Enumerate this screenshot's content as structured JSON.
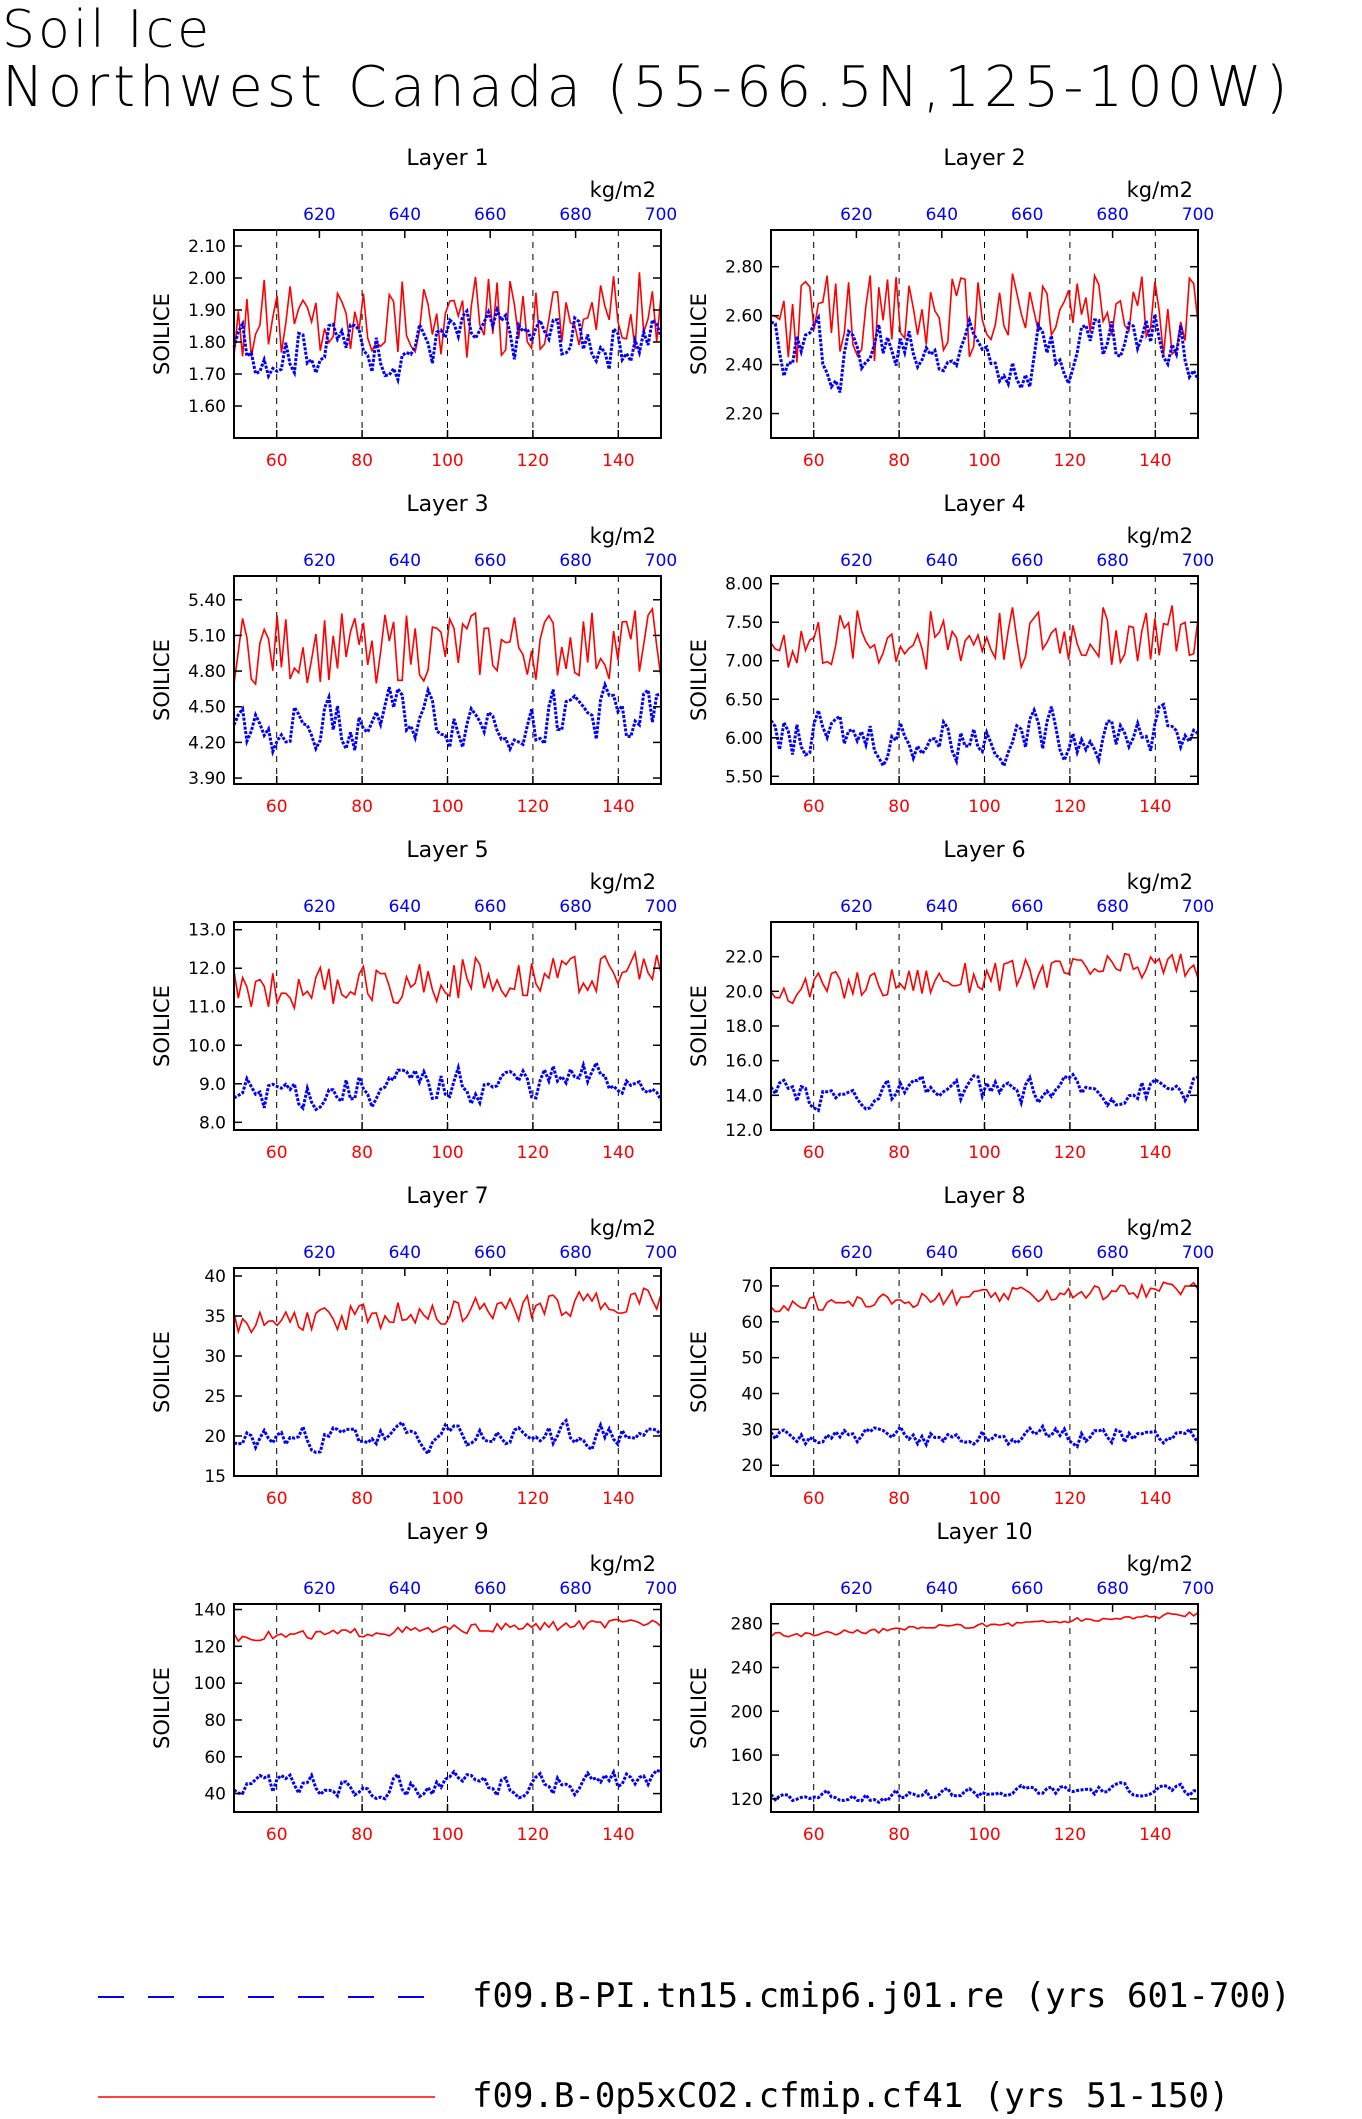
{
  "title": {
    "line1": "Soil Ice",
    "line2": "Northwest Canada (55-66.5N,125-100W)"
  },
  "legend": [
    {
      "label": "f09.B-PI.tn15.cmip6.j01.re (yrs 601-700)",
      "color": "#0000ff",
      "style": "dashed"
    },
    {
      "label": "f09.B-0p5xCO2.cfmip.cf41 (yrs 51-150)",
      "color": "#ff0000",
      "style": "solid"
    }
  ],
  "colors": {
    "series_red": "#ff0000",
    "series_blue": "#0000ff",
    "axis": "#000000"
  },
  "chart_data": [
    {
      "type": "line",
      "title": "Layer 1",
      "ylabel": "SOILICE",
      "units": "kg/m2",
      "bottom_axis": {
        "range": [
          50,
          150
        ],
        "ticks": [
          60,
          80,
          100,
          120,
          140
        ],
        "color": "#ff0000"
      },
      "top_axis": {
        "range": [
          600,
          700
        ],
        "ticks": [
          620,
          640,
          660,
          680,
          700
        ],
        "color": "#0000ff"
      },
      "ylim": [
        1.5,
        2.15
      ],
      "yticks": [
        1.6,
        1.7,
        1.8,
        1.9,
        2.0,
        2.1
      ],
      "ytick_labels": [
        "1.60",
        "1.70",
        "1.80",
        "1.90",
        "2.00",
        "2.10"
      ],
      "vlines": [
        60,
        80,
        100,
        120,
        140
      ],
      "series": [
        {
          "axis": "bottom",
          "color": "#ff0000",
          "style": "solid",
          "mean": 1.88,
          "amp": 0.13,
          "trend": 0.03
        },
        {
          "axis": "top",
          "color": "#0000ff",
          "style": "dashed",
          "mean": 1.8,
          "amp": 0.1,
          "trend": 0.04
        }
      ]
    },
    {
      "type": "line",
      "title": "Layer 2",
      "ylabel": "SOILICE",
      "units": "kg/m2",
      "bottom_axis": {
        "range": [
          50,
          150
        ],
        "ticks": [
          60,
          80,
          100,
          120,
          140
        ],
        "color": "#ff0000"
      },
      "top_axis": {
        "range": [
          600,
          700
        ],
        "ticks": [
          620,
          640,
          660,
          680,
          700
        ],
        "color": "#0000ff"
      },
      "ylim": [
        2.1,
        2.95
      ],
      "yticks": [
        2.2,
        2.4,
        2.6,
        2.8
      ],
      "ytick_labels": [
        "2.20",
        "2.40",
        "2.60",
        "2.80"
      ],
      "vlines": [
        60,
        80,
        100,
        120,
        140
      ],
      "series": [
        {
          "axis": "bottom",
          "color": "#ff0000",
          "style": "solid",
          "mean": 2.6,
          "amp": 0.18,
          "trend": 0.04
        },
        {
          "axis": "top",
          "color": "#0000ff",
          "style": "dashed",
          "mean": 2.48,
          "amp": 0.15,
          "trend": 0.05
        }
      ]
    },
    {
      "type": "line",
      "title": "Layer 3",
      "ylabel": "SOILICE",
      "units": "kg/m2",
      "bottom_axis": {
        "range": [
          50,
          150
        ],
        "ticks": [
          60,
          80,
          100,
          120,
          140
        ],
        "color": "#ff0000"
      },
      "top_axis": {
        "range": [
          600,
          700
        ],
        "ticks": [
          620,
          640,
          660,
          680,
          700
        ],
        "color": "#0000ff"
      },
      "ylim": [
        3.85,
        5.6
      ],
      "yticks": [
        3.9,
        4.2,
        4.5,
        4.8,
        5.1,
        5.4
      ],
      "ytick_labels": [
        "3.90",
        "4.20",
        "4.50",
        "4.80",
        "5.10",
        "5.40"
      ],
      "vlines": [
        60,
        80,
        100,
        120,
        140
      ],
      "series": [
        {
          "axis": "bottom",
          "color": "#ff0000",
          "style": "solid",
          "mean": 5.0,
          "amp": 0.3,
          "trend": 0.05
        },
        {
          "axis": "top",
          "color": "#0000ff",
          "style": "dashed",
          "mean": 4.4,
          "amp": 0.28,
          "trend": 0.08
        }
      ]
    },
    {
      "type": "line",
      "title": "Layer 4",
      "ylabel": "SOILICE",
      "units": "kg/m2",
      "bottom_axis": {
        "range": [
          50,
          150
        ],
        "ticks": [
          60,
          80,
          100,
          120,
          140
        ],
        "color": "#ff0000"
      },
      "top_axis": {
        "range": [
          600,
          700
        ],
        "ticks": [
          620,
          640,
          660,
          680,
          700
        ],
        "color": "#0000ff"
      },
      "ylim": [
        5.4,
        8.1
      ],
      "yticks": [
        5.5,
        6.0,
        6.5,
        7.0,
        7.5,
        8.0
      ],
      "ytick_labels": [
        "5.50",
        "6.00",
        "6.50",
        "7.00",
        "7.50",
        "8.00"
      ],
      "vlines": [
        60,
        80,
        100,
        120,
        140
      ],
      "series": [
        {
          "axis": "bottom",
          "color": "#ff0000",
          "style": "solid",
          "mean": 7.3,
          "amp": 0.4,
          "trend": 0.15
        },
        {
          "axis": "top",
          "color": "#0000ff",
          "style": "dashed",
          "mean": 6.05,
          "amp": 0.35,
          "trend": 0.15
        }
      ]
    },
    {
      "type": "line",
      "title": "Layer 5",
      "ylabel": "SOILICE",
      "units": "kg/m2",
      "bottom_axis": {
        "range": [
          50,
          150
        ],
        "ticks": [
          60,
          80,
          100,
          120,
          140
        ],
        "color": "#ff0000"
      },
      "top_axis": {
        "range": [
          600,
          700
        ],
        "ticks": [
          620,
          640,
          660,
          680,
          700
        ],
        "color": "#0000ff"
      },
      "ylim": [
        7.8,
        13.2
      ],
      "yticks": [
        8.0,
        9.0,
        10.0,
        11.0,
        12.0,
        13.0
      ],
      "ytick_labels": [
        "8.0",
        "9.0",
        "10.0",
        "11.0",
        "12.0",
        "13.0"
      ],
      "vlines": [
        60,
        80,
        100,
        120,
        140
      ],
      "series": [
        {
          "axis": "bottom",
          "color": "#ff0000",
          "style": "solid",
          "mean": 11.7,
          "amp": 0.55,
          "trend": 0.6
        },
        {
          "axis": "top",
          "color": "#0000ff",
          "style": "dashed",
          "mean": 8.9,
          "amp": 0.55,
          "trend": 0.4
        }
      ]
    },
    {
      "type": "line",
      "title": "Layer 6",
      "ylabel": "SOILICE",
      "units": "kg/m2",
      "bottom_axis": {
        "range": [
          50,
          150
        ],
        "ticks": [
          60,
          80,
          100,
          120,
          140
        ],
        "color": "#ff0000"
      },
      "top_axis": {
        "range": [
          600,
          700
        ],
        "ticks": [
          620,
          640,
          660,
          680,
          700
        ],
        "color": "#0000ff"
      },
      "ylim": [
        12.0,
        24.0
      ],
      "yticks": [
        12.0,
        14.0,
        16.0,
        18.0,
        20.0,
        22.0
      ],
      "ytick_labels": [
        "12.0",
        "14.0",
        "16.0",
        "18.0",
        "20.0",
        "22.0"
      ],
      "vlines": [
        60,
        80,
        100,
        120,
        140
      ],
      "series": [
        {
          "axis": "bottom",
          "color": "#ff0000",
          "style": "solid",
          "mean": 20.8,
          "amp": 0.9,
          "trend": 1.5
        },
        {
          "axis": "top",
          "color": "#0000ff",
          "style": "dashed",
          "mean": 14.2,
          "amp": 0.9,
          "trend": 0.6
        }
      ]
    },
    {
      "type": "line",
      "title": "Layer 7",
      "ylabel": "SOILICE",
      "units": "kg/m2",
      "bottom_axis": {
        "range": [
          50,
          150
        ],
        "ticks": [
          60,
          80,
          100,
          120,
          140
        ],
        "color": "#ff0000"
      },
      "top_axis": {
        "range": [
          600,
          700
        ],
        "ticks": [
          620,
          640,
          660,
          680,
          700
        ],
        "color": "#0000ff"
      },
      "ylim": [
        15,
        41
      ],
      "yticks": [
        15,
        20,
        25,
        30,
        35,
        40
      ],
      "ytick_labels": [
        "15",
        "20",
        "25",
        "30",
        "35",
        "40"
      ],
      "vlines": [
        60,
        80,
        100,
        120,
        140
      ],
      "series": [
        {
          "axis": "bottom",
          "color": "#ff0000",
          "style": "solid",
          "mean": 35.5,
          "amp": 1.6,
          "trend": 3.0
        },
        {
          "axis": "top",
          "color": "#0000ff",
          "style": "dashed",
          "mean": 19.8,
          "amp": 1.8,
          "trend": 0.6
        }
      ]
    },
    {
      "type": "line",
      "title": "Layer 8",
      "ylabel": "SOILICE",
      "units": "kg/m2",
      "bottom_axis": {
        "range": [
          50,
          150
        ],
        "ticks": [
          60,
          80,
          100,
          120,
          140
        ],
        "color": "#ff0000"
      },
      "top_axis": {
        "range": [
          600,
          700
        ],
        "ticks": [
          620,
          640,
          660,
          680,
          700
        ],
        "color": "#0000ff"
      },
      "ylim": [
        17,
        75
      ],
      "yticks": [
        20,
        30,
        40,
        50,
        60,
        70
      ],
      "ytick_labels": [
        "20",
        "30",
        "40",
        "50",
        "60",
        "70"
      ],
      "vlines": [
        60,
        80,
        100,
        120,
        140
      ],
      "series": [
        {
          "axis": "bottom",
          "color": "#ff0000",
          "style": "solid",
          "mean": 67,
          "amp": 2.2,
          "trend": 5
        },
        {
          "axis": "top",
          "color": "#0000ff",
          "style": "dashed",
          "mean": 28,
          "amp": 3.0,
          "trend": 1
        }
      ]
    },
    {
      "type": "line",
      "title": "Layer 9",
      "ylabel": "SOILICE",
      "units": "kg/m2",
      "bottom_axis": {
        "range": [
          50,
          150
        ],
        "ticks": [
          60,
          80,
          100,
          120,
          140
        ],
        "color": "#ff0000"
      },
      "top_axis": {
        "range": [
          600,
          700
        ],
        "ticks": [
          620,
          640,
          660,
          680,
          700
        ],
        "color": "#0000ff"
      },
      "ylim": [
        30,
        143
      ],
      "yticks": [
        40,
        60,
        80,
        100,
        120,
        140
      ],
      "ytick_labels": [
        "40",
        "60",
        "80",
        "100",
        "120",
        "140"
      ],
      "vlines": [
        60,
        80,
        100,
        120,
        140
      ],
      "series": [
        {
          "axis": "bottom",
          "color": "#ff0000",
          "style": "solid",
          "mean": 129,
          "amp": 2.5,
          "trend": 8
        },
        {
          "axis": "top",
          "color": "#0000ff",
          "style": "dashed",
          "mean": 45,
          "amp": 7,
          "trend": 2
        }
      ]
    },
    {
      "type": "line",
      "title": "Layer 10",
      "ylabel": "SOILICE",
      "units": "kg/m2",
      "bottom_axis": {
        "range": [
          50,
          150
        ],
        "ticks": [
          60,
          80,
          100,
          120,
          140
        ],
        "color": "#ff0000"
      },
      "top_axis": {
        "range": [
          600,
          700
        ],
        "ticks": [
          620,
          640,
          660,
          680,
          700
        ],
        "color": "#0000ff"
      },
      "ylim": [
        108,
        298
      ],
      "yticks": [
        120,
        160,
        200,
        240,
        280
      ],
      "ytick_labels": [
        "120",
        "160",
        "200",
        "240",
        "280"
      ],
      "vlines": [
        60,
        80,
        100,
        120,
        140
      ],
      "series": [
        {
          "axis": "bottom",
          "color": "#ff0000",
          "style": "solid",
          "mean": 279,
          "amp": 2.5,
          "trend": 20
        },
        {
          "axis": "top",
          "color": "#0000ff",
          "style": "dashed",
          "mean": 125,
          "amp": 6,
          "trend": 8
        }
      ]
    }
  ]
}
